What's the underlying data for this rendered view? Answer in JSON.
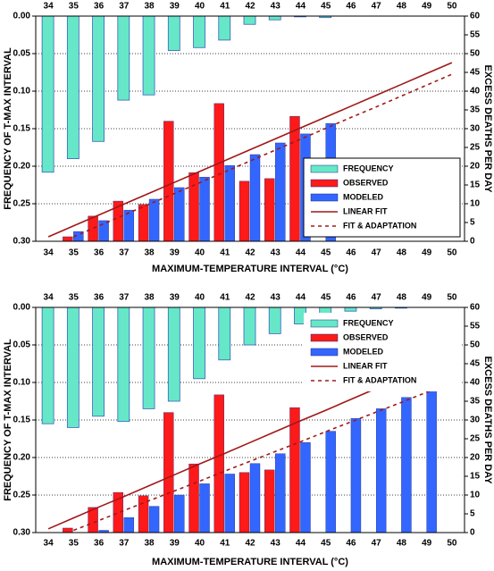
{
  "chart_data": [
    {
      "type": "bar",
      "x_label": "MAXIMUM-TEMPERATURE INTERVAL (°C)",
      "y_label": "FREQUENCY OF T-MAX INTERVAL",
      "y2_label": "EXCESS DEATHS PER DAY",
      "categories": [
        34,
        35,
        36,
        37,
        38,
        39,
        40,
        41,
        42,
        43,
        44,
        45,
        46,
        47,
        48,
        49,
        50
      ],
      "ylim": [
        0,
        0.3
      ],
      "y_inverted": true,
      "yticks": [
        {
          "value": 0,
          "label": "0.00"
        },
        0.05,
        {
          "value": 0.1,
          "label": "0.10"
        },
        0.15,
        {
          "value": 0.2,
          "label": "0.20"
        },
        0.25,
        {
          "value": 0.3,
          "label": "0.30"
        }
      ],
      "y2lim": [
        0,
        60
      ],
      "y2ticks": [
        0,
        5,
        10,
        15,
        20,
        25,
        30,
        35,
        40,
        45,
        50,
        55,
        60
      ],
      "grid": true,
      "legend": "lower-right",
      "series": [
        {
          "name": "FREQUENCY",
          "kind": "bar-down",
          "axis": "y",
          "color": "#66e8c8",
          "values": [
            0.208,
            0.19,
            0.167,
            0.112,
            0.105,
            0.046,
            0.042,
            0.032,
            0.011,
            0.005,
            0.001,
            0.002,
            0,
            0,
            0,
            0,
            0
          ]
        },
        {
          "name": "OBSERVED",
          "kind": "bar",
          "axis": "y2",
          "color": "#ff1a1a",
          "values": [
            null,
            1.2,
            6.7,
            10.7,
            9.8,
            32,
            18.3,
            36.7,
            16,
            16.7,
            33.3,
            null,
            null,
            null,
            null,
            null,
            null
          ]
        },
        {
          "name": "MODELED",
          "kind": "bar",
          "axis": "y2",
          "color": "#3366ff",
          "values": [
            null,
            2.6,
            5.5,
            8.3,
            11.2,
            14.3,
            17.1,
            20.2,
            23.1,
            26.2,
            28.6,
            31.4,
            null,
            null,
            null,
            null,
            null
          ]
        },
        {
          "name": "LINEAR FIT",
          "kind": "line",
          "axis": "y2",
          "color": "#a01818",
          "values": [
            1.2,
            4.1,
            7.0,
            9.9,
            12.8,
            15.7,
            18.6,
            21.5,
            24.4,
            27.3,
            30.2,
            33.1,
            36.0,
            38.9,
            41.8,
            44.7,
            47.6
          ]
        },
        {
          "name": "FIT & ADAPTATION",
          "kind": "dashed",
          "axis": "y2",
          "color": "#a01818",
          "values": [
            null,
            1.2,
            4.1,
            7.0,
            9.9,
            12.7,
            15.6,
            18.5,
            21.4,
            24.3,
            27.2,
            30.1,
            33.0,
            35.8,
            38.7,
            41.6,
            44.5
          ]
        }
      ]
    },
    {
      "type": "bar",
      "x_label": "MAXIMUM-TEMPERATURE INTERVAL (°C)",
      "y_label": "FREQUENCY OF T-MAX INTERVAL",
      "y2_label": "EXCESS DEATHS PER DAY",
      "categories": [
        34,
        35,
        36,
        37,
        38,
        39,
        40,
        41,
        42,
        43,
        44,
        45,
        46,
        47,
        48,
        49,
        50
      ],
      "ylim": [
        0,
        0.3
      ],
      "y_inverted": true,
      "yticks": [
        {
          "value": 0,
          "label": "0.00"
        },
        0.05,
        {
          "value": 0.1,
          "label": "0.10"
        },
        0.15,
        {
          "value": 0.2,
          "label": "0.20"
        },
        0.25,
        {
          "value": 0.3,
          "label": "0.30"
        }
      ],
      "y2lim": [
        0,
        60
      ],
      "y2ticks": [
        0,
        5,
        10,
        15,
        20,
        25,
        30,
        35,
        40,
        45,
        50,
        55,
        60
      ],
      "grid": true,
      "legend": "upper-right",
      "series": [
        {
          "name": "FREQUENCY",
          "kind": "bar-down",
          "axis": "y",
          "color": "#66e8c8",
          "values": [
            0.155,
            0.16,
            0.145,
            0.152,
            0.135,
            0.125,
            0.095,
            0.07,
            0.05,
            0.035,
            0.022,
            0.01,
            0.005,
            0.002,
            0.001,
            0,
            0
          ]
        },
        {
          "name": "OBSERVED",
          "kind": "bar",
          "axis": "y2",
          "color": "#ff1a1a",
          "values": [
            null,
            1.2,
            6.7,
            10.7,
            9.8,
            32,
            18.3,
            36.7,
            16,
            16.7,
            33.3,
            null,
            null,
            null,
            null,
            null,
            null
          ]
        },
        {
          "name": "MODELED",
          "kind": "bar",
          "axis": "y2",
          "color": "#3366ff",
          "values": [
            null,
            null,
            0.6,
            4,
            7,
            10,
            13,
            15.6,
            18.4,
            21,
            24,
            27,
            30.4,
            33,
            36,
            38,
            null
          ]
        },
        {
          "name": "LINEAR FIT",
          "kind": "line",
          "axis": "y2",
          "color": "#a01818",
          "values": [
            1.0,
            3.9,
            6.8,
            9.6,
            12.5,
            15.4,
            18.3,
            21.1,
            24.0,
            26.9,
            29.8,
            32.6,
            35.5,
            38.4,
            41.3,
            44.1,
            47.0
          ]
        },
        {
          "name": "FIT & ADAPTATION",
          "kind": "dashed",
          "axis": "y2",
          "color": "#a01818",
          "values": [
            null,
            0.6,
            3.2,
            5.9,
            8.5,
            11.1,
            13.7,
            16.4,
            19.0,
            21.6,
            24.2,
            26.9,
            29.5,
            32.1,
            34.7,
            37.4,
            40.0
          ]
        }
      ]
    }
  ]
}
